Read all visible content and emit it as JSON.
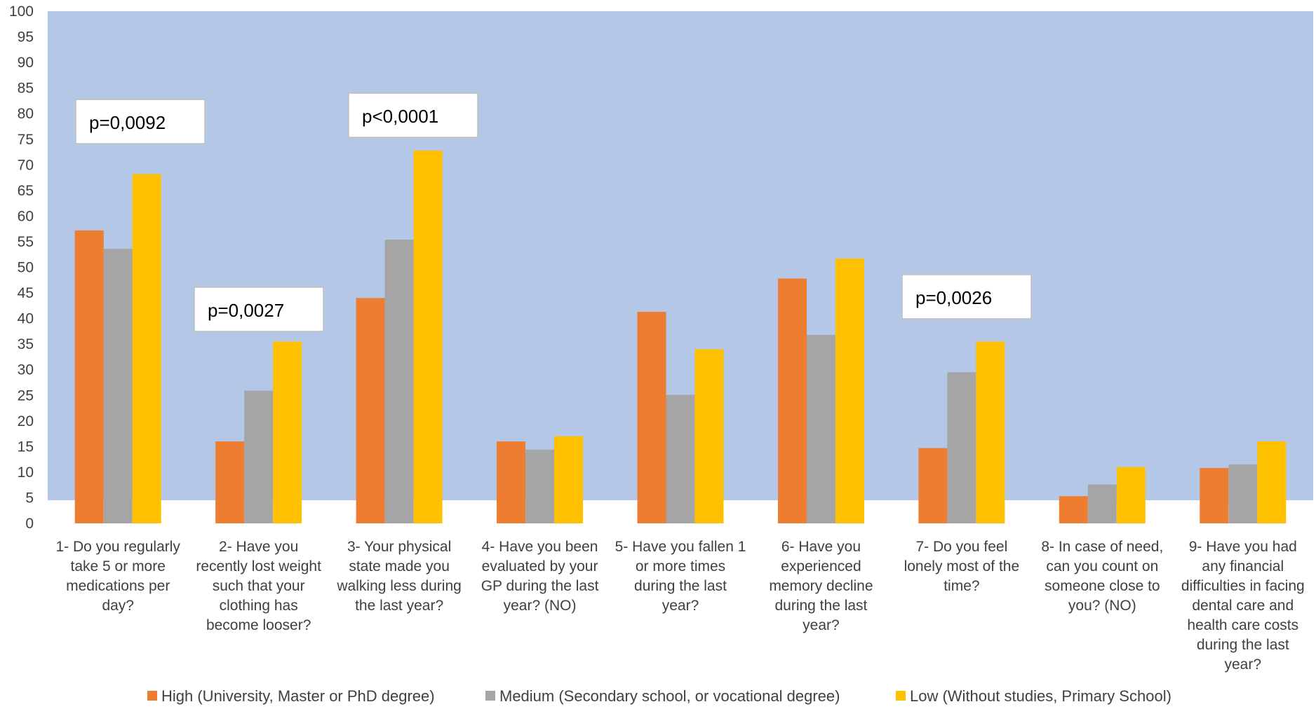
{
  "chart_data": {
    "type": "bar",
    "categories": [
      "1- Do you regularly take 5 or more medications per day?",
      "2- Have you recently lost weight such that your clothing has become looser?",
      "3- Your physical state made you walking less during the last year?",
      "4- Have you been evaluated by your GP during the last year? (NO)",
      "5- Have you fallen 1 or more times during the last year?",
      "6- Have you experienced memory decline during the last year?",
      "7- Do you feel lonely most of the time?",
      "8- In case of need, can you count on someone close to you? (NO)",
      "9- Have you had any financial difficulties in facing dental care and health care costs during the last year?"
    ],
    "category_lines": [
      [
        "1- Do you regularly",
        "take 5 or more",
        "medications per",
        "day?"
      ],
      [
        "2- Have you",
        "recently lost weight",
        "such that your",
        "clothing has",
        "become looser?"
      ],
      [
        "3- Your physical",
        "state made you",
        "walking less during",
        "the last year?"
      ],
      [
        "4- Have you been",
        "evaluated by your",
        "GP during the last",
        "year? (NO)"
      ],
      [
        "5- Have you fallen 1",
        "or more times",
        "during the last",
        "year?"
      ],
      [
        "6- Have you",
        "experienced",
        "memory decline",
        "during the last",
        "year?"
      ],
      [
        "7- Do you feel",
        "lonely most of the",
        "time?"
      ],
      [
        "8- In case of need,",
        "can you count on",
        "someone close to",
        "you? (NO)"
      ],
      [
        "9- Have you had",
        "any financial",
        "difficulties in facing",
        "dental care and",
        "health care costs",
        "during the last",
        "year?"
      ]
    ],
    "series": [
      {
        "name": "High (University, Master or PhD degree)",
        "color": "#ED7D31",
        "values": [
          57.2,
          16,
          44,
          16,
          41.3,
          47.8,
          14.7,
          5.3,
          10.8
        ]
      },
      {
        "name": "Medium (Secondary school, or vocational degree)",
        "color": "#A5A5A5",
        "values": [
          53.6,
          25.9,
          55.4,
          14.4,
          25.1,
          36.8,
          29.5,
          7.6,
          11.5
        ]
      },
      {
        "name": "Low (Without studies, Primary School)",
        "color": "#FFC000",
        "values": [
          68.2,
          35.5,
          72.8,
          17,
          34,
          51.7,
          35.5,
          11,
          16
        ]
      }
    ],
    "ylim": [
      0,
      100
    ],
    "yticks": [
      "0",
      "5",
      "10",
      "15",
      "20",
      "25",
      "30",
      "35",
      "40",
      "45",
      "50",
      "55",
      "60",
      "65",
      "70",
      "75",
      "80",
      "85",
      "90",
      "95",
      "100"
    ],
    "background_band": {
      "color": "#B4C7E7",
      "from": 4.5,
      "to": 100
    },
    "annotations": [
      {
        "text": "p=0,0092",
        "category": 0
      },
      {
        "text": "p=0,0027",
        "category": 1
      },
      {
        "text": "p<0,0001",
        "category": 2
      },
      {
        "text": "p=0,0026",
        "category": 6
      }
    ],
    "legend_position": "bottom",
    "grid": false
  }
}
